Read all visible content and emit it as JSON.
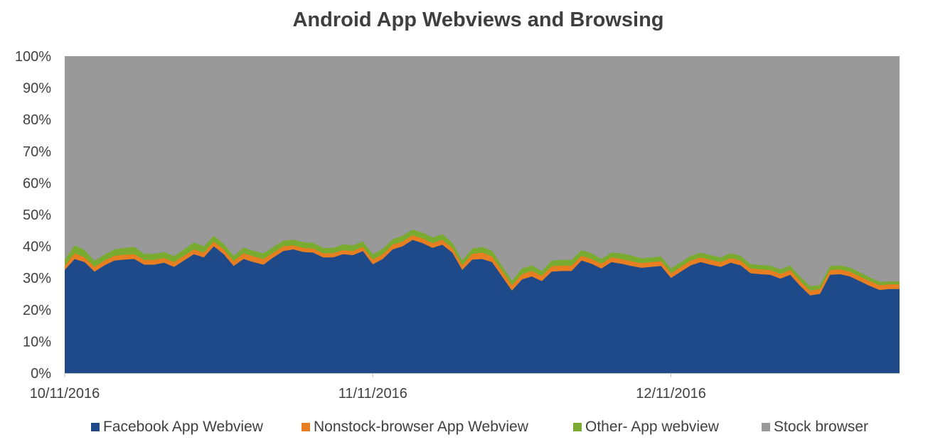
{
  "title": "Android App Webviews and Browsing",
  "colors": {
    "facebook": "#1f4a89",
    "nonstock": "#e87e22",
    "other": "#78ab2f",
    "stock": "#999999"
  },
  "chart_data": {
    "type": "area",
    "stacked": "percent",
    "title": "Android App Webviews and Browsing",
    "xlabel": "",
    "ylabel": "",
    "ylim": [
      0,
      100
    ],
    "y_ticks": [
      "0%",
      "10%",
      "20%",
      "30%",
      "40%",
      "50%",
      "60%",
      "70%",
      "80%",
      "90%",
      "100%"
    ],
    "x_ticks": [
      "10/11/2016",
      "11/11/2016",
      "12/11/2016"
    ],
    "x_start": "10/11/2016",
    "x_end": "1/3/2017",
    "grid": false,
    "legend_position": "bottom",
    "x": [
      "10/11/2016",
      "10/12/2016",
      "10/13/2016",
      "10/14/2016",
      "10/15/2016",
      "10/16/2016",
      "10/17/2016",
      "10/18/2016",
      "10/19/2016",
      "10/20/2016",
      "10/21/2016",
      "10/22/2016",
      "10/23/2016",
      "10/24/2016",
      "10/25/2016",
      "10/26/2016",
      "10/27/2016",
      "10/28/2016",
      "10/29/2016",
      "10/30/2016",
      "10/31/2016",
      "11/1/2016",
      "11/2/2016",
      "11/3/2016",
      "11/4/2016",
      "11/5/2016",
      "11/6/2016",
      "11/7/2016",
      "11/8/2016",
      "11/9/2016",
      "11/10/2016",
      "11/11/2016",
      "11/12/2016",
      "11/13/2016",
      "11/14/2016",
      "11/15/2016",
      "11/16/2016",
      "11/17/2016",
      "11/18/2016",
      "11/19/2016",
      "11/20/2016",
      "11/21/2016",
      "11/22/2016",
      "11/23/2016",
      "11/24/2016",
      "11/25/2016",
      "11/26/2016",
      "11/27/2016",
      "11/28/2016",
      "11/29/2016",
      "11/30/2016",
      "12/1/2016",
      "12/2/2016",
      "12/3/2016",
      "12/4/2016",
      "12/5/2016",
      "12/6/2016",
      "12/7/2016",
      "12/8/2016",
      "12/9/2016",
      "12/10/2016",
      "12/11/2016",
      "12/12/2016",
      "12/13/2016",
      "12/14/2016",
      "12/15/2016",
      "12/16/2016",
      "12/17/2016",
      "12/18/2016",
      "12/19/2016",
      "12/20/2016",
      "12/21/2016",
      "12/22/2016",
      "12/23/2016",
      "12/24/2016",
      "12/25/2016",
      "12/26/2016",
      "12/27/2016",
      "12/28/2016",
      "12/29/2016",
      "12/30/2016",
      "12/31/2016",
      "1/1/2017",
      "1/2/2017",
      "1/3/2017"
    ],
    "series": [
      {
        "name": "Facebook App Webview",
        "color": "#1f4a89",
        "values": [
          32.5,
          36.0,
          35.0,
          32.0,
          34.0,
          35.5,
          35.8,
          36.0,
          34.2,
          34.2,
          34.8,
          33.5,
          35.5,
          37.5,
          36.5,
          40.0,
          37.5,
          33.8,
          36.0,
          35.0,
          34.2,
          36.5,
          38.5,
          39.0,
          38.2,
          38.0,
          36.5,
          36.5,
          37.5,
          37.2,
          38.5,
          34.3,
          36.0,
          39.0,
          40.0,
          42.0,
          41.0,
          39.5,
          40.5,
          38.0,
          32.5,
          35.8,
          36.0,
          35.0,
          30.5,
          26.0,
          29.5,
          30.5,
          29.0,
          32.0,
          32.2,
          32.2,
          35.5,
          34.5,
          33.0,
          35.0,
          34.5,
          33.8,
          33.2,
          33.5,
          33.8,
          30.0,
          32.0,
          34.0,
          35.0,
          34.2,
          33.5,
          34.8,
          34.0,
          31.5,
          31.2,
          31.0,
          29.8,
          31.0,
          27.5,
          24.5,
          25.0,
          31.0,
          31.2,
          30.5,
          29.0,
          27.5,
          26.2,
          26.5,
          26.5
        ]
      },
      {
        "name": "Nonstock-browser App Webview",
        "color": "#e87e22",
        "values": [
          1.3,
          1.8,
          1.5,
          1.5,
          1.5,
          1.5,
          1.5,
          1.5,
          1.5,
          1.5,
          1.5,
          1.5,
          1.5,
          1.5,
          1.5,
          1.5,
          1.5,
          1.5,
          1.8,
          1.8,
          1.8,
          1.5,
          1.5,
          1.3,
          1.3,
          1.3,
          1.3,
          1.3,
          1.3,
          1.3,
          1.3,
          1.5,
          1.5,
          1.5,
          1.5,
          1.5,
          1.5,
          1.5,
          1.5,
          1.5,
          1.5,
          1.8,
          2.0,
          1.8,
          1.8,
          1.7,
          1.7,
          1.7,
          1.7,
          1.7,
          1.7,
          1.7,
          1.5,
          1.5,
          1.5,
          1.5,
          1.5,
          1.5,
          1.5,
          1.5,
          1.5,
          1.5,
          1.5,
          1.5,
          1.5,
          1.5,
          1.5,
          1.5,
          1.5,
          1.5,
          1.5,
          1.5,
          1.5,
          1.5,
          1.5,
          1.5,
          1.5,
          1.5,
          1.5,
          1.5,
          1.5,
          1.5,
          1.5,
          1.5,
          1.5
        ]
      },
      {
        "name": "Other- App webview",
        "color": "#78ab2f",
        "values": [
          1.9,
          2.5,
          2.3,
          1.9,
          1.9,
          2.0,
          2.2,
          2.3,
          1.9,
          1.9,
          1.9,
          1.9,
          2.0,
          2.2,
          2.0,
          1.8,
          1.8,
          1.7,
          1.8,
          1.8,
          1.8,
          1.8,
          1.8,
          1.8,
          1.8,
          1.8,
          1.7,
          1.7,
          1.8,
          1.8,
          1.8,
          1.7,
          1.7,
          1.7,
          1.8,
          1.8,
          1.8,
          1.8,
          1.8,
          1.7,
          1.5,
          1.7,
          1.8,
          1.8,
          1.5,
          1.4,
          1.8,
          1.8,
          1.5,
          1.8,
          1.8,
          1.8,
          1.8,
          1.8,
          1.5,
          1.5,
          1.8,
          1.8,
          1.5,
          1.5,
          1.5,
          1.5,
          1.5,
          1.5,
          1.5,
          1.5,
          1.5,
          1.5,
          1.5,
          1.4,
          1.4,
          1.4,
          1.4,
          1.4,
          1.4,
          1.4,
          1.3,
          1.3,
          1.3,
          1.3,
          1.3,
          1.2,
          1.1,
          0.9,
          0.9
        ]
      }
    ],
    "remainder_series": {
      "name": "Stock browser",
      "color": "#999999"
    }
  },
  "legend": [
    {
      "label": "Facebook App Webview",
      "color": "#1f4a89"
    },
    {
      "label": "Nonstock-browser App Webview",
      "color": "#e87e22"
    },
    {
      "label": "Other- App webview",
      "color": "#78ab2f"
    },
    {
      "label": "Stock browser",
      "color": "#999999"
    }
  ]
}
